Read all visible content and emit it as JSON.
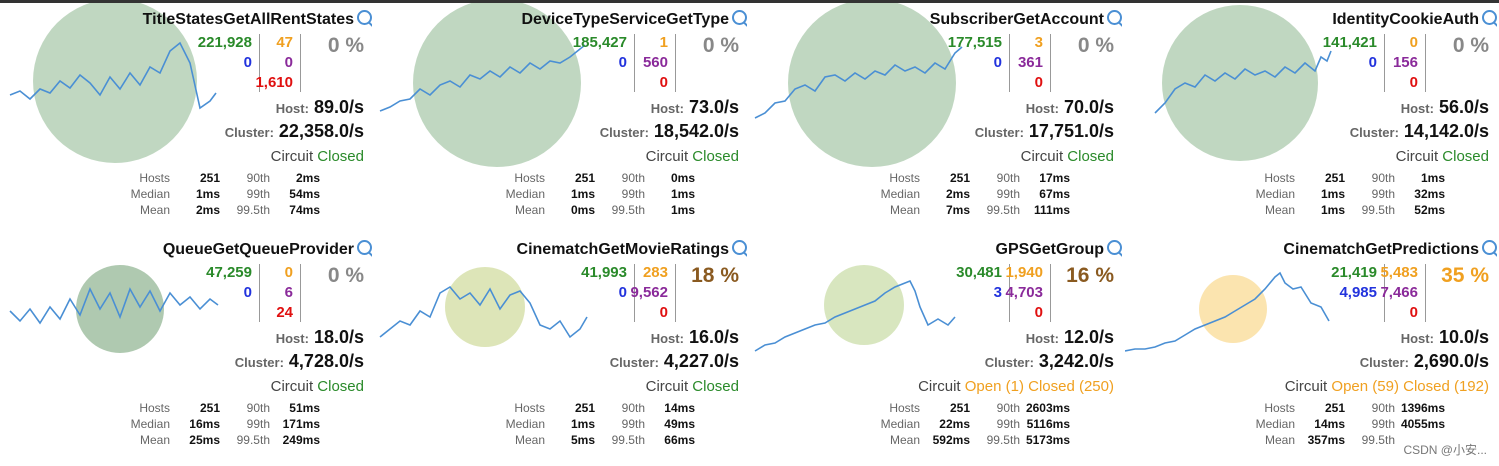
{
  "cards": [
    {
      "title": "TitleStatesGetAllRentStates",
      "success": "221,928",
      "short_circuited": "0",
      "timeout": "47",
      "rejected": "0",
      "failure": "1,610",
      "error_pct": "0 %",
      "host_rate": "89.0/s",
      "cluster_rate": "22,358.0/s",
      "circuit_label": "Circuit",
      "circuit_status": "Closed",
      "hosts": "251",
      "median": "1ms",
      "mean": "2ms",
      "p90": "2ms",
      "p99": "54ms",
      "p995": "74ms"
    },
    {
      "title": "DeviceTypeServiceGetType",
      "success": "185,427",
      "short_circuited": "0",
      "timeout": "1",
      "rejected": "560",
      "failure": "0",
      "error_pct": "0 %",
      "host_rate": "73.0/s",
      "cluster_rate": "18,542.0/s",
      "circuit_label": "Circuit",
      "circuit_status": "Closed",
      "hosts": "251",
      "median": "1ms",
      "mean": "0ms",
      "p90": "0ms",
      "p99": "1ms",
      "p995": "1ms"
    },
    {
      "title": "SubscriberGetAccount",
      "success": "177,515",
      "short_circuited": "0",
      "timeout": "3",
      "rejected": "361",
      "failure": "0",
      "error_pct": "0 %",
      "host_rate": "70.0/s",
      "cluster_rate": "17,751.0/s",
      "circuit_label": "Circuit",
      "circuit_status": "Closed",
      "hosts": "251",
      "median": "2ms",
      "mean": "7ms",
      "p90": "17ms",
      "p99": "67ms",
      "p995": "111ms"
    },
    {
      "title": "IdentityCookieAuth",
      "success": "141,421",
      "short_circuited": "0",
      "timeout": "0",
      "rejected": "156",
      "failure": "0",
      "error_pct": "0 %",
      "host_rate": "56.0/s",
      "cluster_rate": "14,142.0/s",
      "circuit_label": "Circuit",
      "circuit_status": "Closed",
      "hosts": "251",
      "median": "1ms",
      "mean": "1ms",
      "p90": "1ms",
      "p99": "32ms",
      "p995": "52ms"
    },
    {
      "title": "QueueGetQueueProvider",
      "success": "47,259",
      "short_circuited": "0",
      "timeout": "0",
      "rejected": "6",
      "failure": "24",
      "error_pct": "0 %",
      "host_rate": "18.0/s",
      "cluster_rate": "4,728.0/s",
      "circuit_label": "Circuit",
      "circuit_status": "Closed",
      "hosts": "251",
      "median": "16ms",
      "mean": "25ms",
      "p90": "51ms",
      "p99": "171ms",
      "p995": "249ms"
    },
    {
      "title": "CinematchGetMovieRatings",
      "success": "41,993",
      "short_circuited": "0",
      "timeout": "283",
      "rejected": "9,562",
      "failure": "0",
      "error_pct": "18 %",
      "host_rate": "16.0/s",
      "cluster_rate": "4,227.0/s",
      "circuit_label": "Circuit",
      "circuit_status": "Closed",
      "hosts": "251",
      "median": "1ms",
      "mean": "5ms",
      "p90": "14ms",
      "p99": "49ms",
      "p995": "66ms"
    },
    {
      "title": "GPSGetGroup",
      "success": "30,481",
      "short_circuited": "3",
      "timeout": "1,940",
      "rejected": "4,703",
      "failure": "0",
      "error_pct": "16 %",
      "host_rate": "12.0/s",
      "cluster_rate": "3,242.0/s",
      "circuit_label": "Circuit",
      "circuit_status": "Open (1) Closed (250)",
      "hosts": "251",
      "median": "22ms",
      "mean": "592ms",
      "p90": "2603ms",
      "p99": "5116ms",
      "p995": "5173ms"
    },
    {
      "title": "CinematchGetPredictions",
      "success": "21,419",
      "short_circuited": "4,985",
      "timeout": "5,483",
      "rejected": "7,466",
      "failure": "0",
      "error_pct": "35 %",
      "host_rate": "10.0/s",
      "cluster_rate": "2,690.0/s",
      "circuit_label": "Circuit",
      "circuit_status": "Open (59) Closed (192)",
      "hosts": "251",
      "median": "14ms",
      "mean": "357ms",
      "p90": "1396ms",
      "p99": "4055ms",
      "p995": ""
    }
  ],
  "labels": {
    "host": "Host:",
    "cluster": "Cluster:",
    "hosts": "Hosts",
    "median": "Median",
    "mean": "Mean",
    "p90": "90th",
    "p99": "99th",
    "p995": "99.5th"
  },
  "watermark": "CSDN @小安..."
}
